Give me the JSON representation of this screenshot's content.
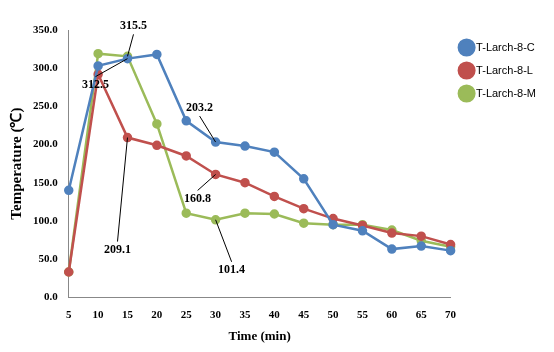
{
  "chart_data": {
    "type": "line",
    "x_label": "Time (min)",
    "y_label": "Temperature (℃)",
    "categories": [
      5,
      10,
      15,
      20,
      25,
      30,
      35,
      40,
      45,
      50,
      55,
      60,
      65,
      70
    ],
    "series": [
      {
        "name": "T-Larch-8-C",
        "color": "#4f81bd",
        "marker": "circle",
        "line_style": "solid",
        "values": [
          140,
          303,
          312.5,
          318,
          231,
          203.2,
          198,
          190,
          155,
          95,
          87,
          63,
          67,
          61
        ]
      },
      {
        "name": "T-Larch-8-L",
        "color": "#c0504d",
        "marker": "circle",
        "line_style": "solid",
        "values": [
          33,
          292,
          209.1,
          199,
          185,
          160.8,
          150,
          132,
          116,
          103,
          94,
          84,
          80,
          69
        ]
      },
      {
        "name": "T-Larch-8-M",
        "color": "#9bbb59",
        "marker": "circle",
        "line_style": "solid",
        "values": [
          33,
          319,
          315.5,
          227,
          110,
          101.4,
          110,
          109,
          97,
          95,
          95,
          88,
          74,
          66
        ]
      }
    ],
    "ylim": [
      0,
      350
    ],
    "yticks": [
      {
        "value": 0,
        "label": "0.0"
      },
      {
        "value": 50,
        "label": "50.0"
      },
      {
        "value": 100,
        "label": "100.0"
      },
      {
        "value": 150,
        "label": "150.0"
      },
      {
        "value": 200,
        "label": "200.0"
      },
      {
        "value": 250,
        "label": "250.0"
      },
      {
        "value": 300,
        "label": "300.0"
      },
      {
        "value": 350,
        "label": "350.0"
      }
    ],
    "annotations": [
      {
        "text": "315.5",
        "series": "T-Larch-8-M",
        "category": 15
      },
      {
        "text": "312.5",
        "series": "T-Larch-8-C",
        "category": 15
      },
      {
        "text": "209.1",
        "series": "T-Larch-8-L",
        "category": 15
      },
      {
        "text": "203.2",
        "series": "T-Larch-8-C",
        "category": 30
      },
      {
        "text": "160.8",
        "series": "T-Larch-8-L",
        "category": 30
      },
      {
        "text": "101.4",
        "series": "T-Larch-8-M",
        "category": 30
      }
    ],
    "grid": false,
    "legend": "right"
  }
}
